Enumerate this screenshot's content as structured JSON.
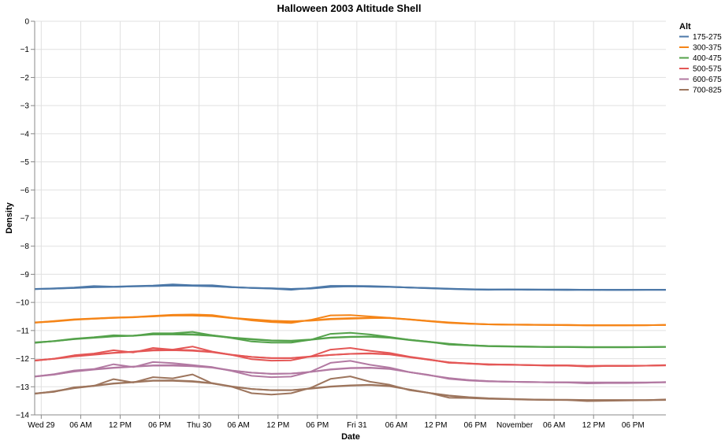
{
  "chart_data": {
    "type": "line",
    "title": "Halloween 2003 Altitude Shell",
    "xlabel": "Date",
    "ylabel": "Density",
    "ylim": [
      -14,
      0
    ],
    "y_ticks": [
      0,
      -1,
      -2,
      -3,
      -4,
      -5,
      -6,
      -7,
      -8,
      -9,
      -10,
      -11,
      -12,
      -13,
      -14
    ],
    "x_ticks": [
      {
        "t": 0,
        "label": "Wed 29"
      },
      {
        "t": 6,
        "label": "06 AM"
      },
      {
        "t": 12,
        "label": "12 PM"
      },
      {
        "t": 18,
        "label": "06 PM"
      },
      {
        "t": 24,
        "label": "Thu 30"
      },
      {
        "t": 30,
        "label": "06 AM"
      },
      {
        "t": 36,
        "label": "12 PM"
      },
      {
        "t": 42,
        "label": "06 PM"
      },
      {
        "t": 48,
        "label": "Fri 31"
      },
      {
        "t": 54,
        "label": "06 AM"
      },
      {
        "t": 60,
        "label": "12 PM"
      },
      {
        "t": 66,
        "label": "06 PM"
      },
      {
        "t": 72,
        "label": "November"
      },
      {
        "t": 78,
        "label": "06 AM"
      },
      {
        "t": 84,
        "label": "12 PM"
      },
      {
        "t": 90,
        "label": "06 PM"
      }
    ],
    "xlim": [
      -1,
      95
    ],
    "grid": true,
    "legend": {
      "title": "Alt",
      "placement": "top-right"
    },
    "x_hours": [
      -1,
      2,
      5,
      8,
      11,
      14,
      17,
      20,
      23,
      26,
      29,
      32,
      35,
      38,
      41,
      44,
      47,
      50,
      53,
      56,
      59,
      62,
      65,
      68,
      71,
      74,
      77,
      80,
      83,
      86,
      89,
      92,
      95
    ],
    "series": [
      {
        "name": "175-275",
        "color": "#4c78a8",
        "lines": [
          [
            -9.52,
            -9.51,
            -9.48,
            -9.45,
            -9.45,
            -9.43,
            -9.42,
            -9.4,
            -9.4,
            -9.42,
            -9.46,
            -9.48,
            -9.5,
            -9.52,
            -9.51,
            -9.45,
            -9.43,
            -9.44,
            -9.45,
            -9.47,
            -9.49,
            -9.51,
            -9.53,
            -9.54,
            -9.54,
            -9.54,
            -9.54,
            -9.54,
            -9.55,
            -9.55,
            -9.55,
            -9.55,
            -9.55
          ],
          [
            -9.53,
            -9.5,
            -9.47,
            -9.42,
            -9.44,
            -9.42,
            -9.4,
            -9.36,
            -9.39,
            -9.39,
            -9.45,
            -9.49,
            -9.51,
            -9.55,
            -9.49,
            -9.41,
            -9.41,
            -9.42,
            -9.44,
            -9.47,
            -9.5,
            -9.52,
            -9.54,
            -9.55,
            -9.54,
            -9.55,
            -9.55,
            -9.56,
            -9.55,
            -9.56,
            -9.56,
            -9.55,
            -9.55
          ],
          [
            -9.52,
            -9.51,
            -9.49,
            -9.46,
            -9.45,
            -9.43,
            -9.42,
            -9.4,
            -9.41,
            -9.43,
            -9.46,
            -9.48,
            -9.5,
            -9.52,
            -9.5,
            -9.44,
            -9.43,
            -9.44,
            -9.45,
            -9.47,
            -9.49,
            -9.52,
            -9.53,
            -9.54,
            -9.54,
            -9.54,
            -9.55,
            -9.55,
            -9.55,
            -9.55,
            -9.55,
            -9.55,
            -9.55
          ]
        ]
      },
      {
        "name": "300-375",
        "color": "#f58518",
        "lines": [
          [
            -10.72,
            -10.68,
            -10.62,
            -10.58,
            -10.55,
            -10.52,
            -10.5,
            -10.46,
            -10.45,
            -10.47,
            -10.55,
            -10.6,
            -10.65,
            -10.67,
            -10.65,
            -10.6,
            -10.58,
            -10.56,
            -10.55,
            -10.6,
            -10.66,
            -10.72,
            -10.76,
            -10.78,
            -10.79,
            -10.79,
            -10.8,
            -10.8,
            -10.81,
            -10.81,
            -10.81,
            -10.81,
            -10.8
          ],
          [
            -10.72,
            -10.66,
            -10.6,
            -10.57,
            -10.54,
            -10.52,
            -10.48,
            -10.44,
            -10.43,
            -10.45,
            -10.55,
            -10.64,
            -10.7,
            -10.73,
            -10.62,
            -10.46,
            -10.45,
            -10.5,
            -10.55,
            -10.61,
            -10.67,
            -10.73,
            -10.76,
            -10.78,
            -10.79,
            -10.8,
            -10.8,
            -10.81,
            -10.82,
            -10.82,
            -10.82,
            -10.81,
            -10.8
          ],
          [
            -10.71,
            -10.67,
            -10.61,
            -10.58,
            -10.55,
            -10.53,
            -10.49,
            -10.47,
            -10.47,
            -10.49,
            -10.56,
            -10.61,
            -10.66,
            -10.68,
            -10.64,
            -10.58,
            -10.56,
            -10.55,
            -10.56,
            -10.61,
            -10.66,
            -10.71,
            -10.75,
            -10.78,
            -10.79,
            -10.79,
            -10.8,
            -10.8,
            -10.81,
            -10.81,
            -10.81,
            -10.81,
            -10.8
          ]
        ]
      },
      {
        "name": "400-475",
        "color": "#54a24b",
        "lines": [
          [
            -11.43,
            -11.38,
            -11.3,
            -11.25,
            -11.2,
            -11.18,
            -11.13,
            -11.12,
            -11.13,
            -11.17,
            -11.25,
            -11.3,
            -11.35,
            -11.36,
            -11.32,
            -11.25,
            -11.22,
            -11.21,
            -11.25,
            -11.33,
            -11.4,
            -11.47,
            -11.52,
            -11.55,
            -11.56,
            -11.57,
            -11.58,
            -11.58,
            -11.59,
            -11.59,
            -11.59,
            -11.59,
            -11.58
          ],
          [
            -11.44,
            -11.37,
            -11.29,
            -11.24,
            -11.17,
            -11.19,
            -11.1,
            -11.1,
            -11.05,
            -11.17,
            -11.27,
            -11.39,
            -11.43,
            -11.43,
            -11.33,
            -11.12,
            -11.08,
            -11.14,
            -11.23,
            -11.33,
            -11.4,
            -11.5,
            -11.53,
            -11.56,
            -11.57,
            -11.58,
            -11.59,
            -11.59,
            -11.6,
            -11.6,
            -11.6,
            -11.59,
            -11.58
          ],
          [
            -11.42,
            -11.38,
            -11.31,
            -11.26,
            -11.21,
            -11.19,
            -11.14,
            -11.14,
            -11.15,
            -11.19,
            -11.26,
            -11.32,
            -11.36,
            -11.37,
            -11.33,
            -11.26,
            -11.23,
            -11.22,
            -11.26,
            -11.34,
            -11.41,
            -11.48,
            -11.52,
            -11.55,
            -11.56,
            -11.57,
            -11.58,
            -11.58,
            -11.59,
            -11.59,
            -11.59,
            -11.59,
            -11.58
          ]
        ]
      },
      {
        "name": "500-575",
        "color": "#e45756",
        "lines": [
          [
            -12.07,
            -12.0,
            -11.91,
            -11.85,
            -11.79,
            -11.75,
            -11.69,
            -11.68,
            -11.7,
            -11.76,
            -11.86,
            -11.94,
            -11.98,
            -11.98,
            -11.92,
            -11.87,
            -11.83,
            -11.81,
            -11.84,
            -11.94,
            -12.04,
            -12.13,
            -12.18,
            -12.2,
            -12.22,
            -12.23,
            -12.24,
            -12.24,
            -12.26,
            -12.26,
            -12.26,
            -12.25,
            -12.24
          ],
          [
            -12.07,
            -12.0,
            -11.88,
            -11.82,
            -11.7,
            -11.78,
            -11.62,
            -11.68,
            -11.57,
            -11.75,
            -11.87,
            -12.02,
            -12.07,
            -12.06,
            -11.92,
            -11.68,
            -11.62,
            -11.72,
            -11.8,
            -11.93,
            -12.03,
            -12.15,
            -12.17,
            -12.22,
            -12.21,
            -12.23,
            -12.25,
            -12.25,
            -12.28,
            -12.26,
            -12.26,
            -12.25,
            -12.23
          ],
          [
            -12.06,
            -12.01,
            -11.92,
            -11.86,
            -11.8,
            -11.76,
            -11.71,
            -11.7,
            -11.72,
            -11.77,
            -11.87,
            -11.94,
            -11.98,
            -11.98,
            -11.93,
            -11.87,
            -11.83,
            -11.82,
            -11.85,
            -11.95,
            -12.04,
            -12.13,
            -12.17,
            -12.2,
            -12.21,
            -12.23,
            -12.24,
            -12.24,
            -12.26,
            -12.25,
            -12.25,
            -12.25,
            -12.24
          ]
        ]
      },
      {
        "name": "600-675",
        "color": "#b279a2",
        "lines": [
          [
            -12.64,
            -12.57,
            -12.45,
            -12.38,
            -12.32,
            -12.28,
            -12.24,
            -12.23,
            -12.25,
            -12.31,
            -12.42,
            -12.5,
            -12.54,
            -12.53,
            -12.47,
            -12.38,
            -12.33,
            -12.32,
            -12.36,
            -12.48,
            -12.59,
            -12.7,
            -12.76,
            -12.8,
            -12.82,
            -12.83,
            -12.84,
            -12.84,
            -12.85,
            -12.85,
            -12.85,
            -12.85,
            -12.84
          ],
          [
            -12.64,
            -12.55,
            -12.42,
            -12.37,
            -12.2,
            -12.3,
            -12.12,
            -12.16,
            -12.23,
            -12.3,
            -12.44,
            -12.61,
            -12.66,
            -12.64,
            -12.46,
            -12.15,
            -12.08,
            -12.22,
            -12.32,
            -12.48,
            -12.58,
            -12.72,
            -12.78,
            -12.81,
            -12.82,
            -12.83,
            -12.84,
            -12.85,
            -12.88,
            -12.87,
            -12.87,
            -12.86,
            -12.83
          ],
          [
            -12.63,
            -12.56,
            -12.46,
            -12.39,
            -12.33,
            -12.29,
            -12.25,
            -12.25,
            -12.27,
            -12.32,
            -12.43,
            -12.5,
            -12.54,
            -12.53,
            -12.47,
            -12.39,
            -12.34,
            -12.33,
            -12.37,
            -12.48,
            -12.59,
            -12.69,
            -12.76,
            -12.8,
            -12.82,
            -12.83,
            -12.84,
            -12.84,
            -12.85,
            -12.85,
            -12.85,
            -12.85,
            -12.84
          ]
        ]
      },
      {
        "name": "700-825",
        "color": "#9d755d",
        "lines": [
          [
            -13.25,
            -13.16,
            -13.04,
            -12.96,
            -12.88,
            -12.83,
            -12.78,
            -12.77,
            -12.8,
            -12.87,
            -12.99,
            -13.08,
            -13.12,
            -13.12,
            -13.06,
            -12.99,
            -12.95,
            -12.93,
            -12.97,
            -13.1,
            -13.22,
            -13.32,
            -13.38,
            -13.42,
            -13.44,
            -13.45,
            -13.46,
            -13.47,
            -13.48,
            -13.48,
            -13.48,
            -13.48,
            -13.47
          ],
          [
            -13.24,
            -13.18,
            -13.02,
            -12.97,
            -12.73,
            -12.85,
            -12.66,
            -12.7,
            -12.56,
            -12.88,
            -13.0,
            -13.23,
            -13.28,
            -13.23,
            -13.04,
            -12.72,
            -12.63,
            -12.82,
            -12.93,
            -13.12,
            -13.22,
            -13.39,
            -13.4,
            -13.43,
            -13.44,
            -13.46,
            -13.47,
            -13.47,
            -13.51,
            -13.5,
            -13.49,
            -13.48,
            -13.45
          ],
          [
            -13.24,
            -13.17,
            -13.05,
            -12.97,
            -12.89,
            -12.84,
            -12.79,
            -12.79,
            -12.82,
            -12.88,
            -13.0,
            -13.08,
            -13.12,
            -13.12,
            -13.07,
            -13.0,
            -12.96,
            -12.94,
            -12.98,
            -13.1,
            -13.22,
            -13.31,
            -13.37,
            -13.41,
            -13.43,
            -13.45,
            -13.46,
            -13.46,
            -13.47,
            -13.47,
            -13.47,
            -13.47,
            -13.46
          ]
        ]
      }
    ]
  }
}
